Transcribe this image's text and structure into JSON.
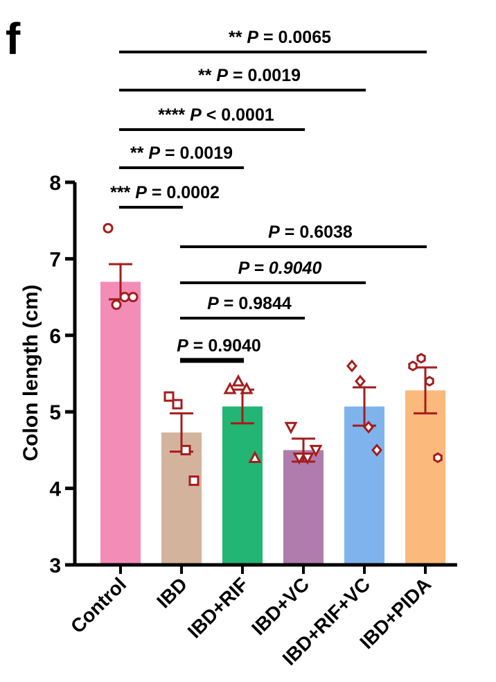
{
  "panel_label": "f",
  "chart_data": {
    "type": "bar",
    "ylabel": "Colon length (cm)",
    "xlabel": "",
    "ylim": [
      3,
      8
    ],
    "yticks": [
      "3",
      "4",
      "5",
      "6",
      "7",
      "8"
    ],
    "categories": [
      "Control",
      "IBD",
      "IBD+RIF",
      "IBD+VC",
      "IBD+RIF+VC",
      "IBD+PIDA"
    ],
    "values": [
      6.7,
      4.73,
      5.07,
      4.5,
      5.07,
      5.28
    ],
    "sem": [
      0.23,
      0.25,
      0.22,
      0.15,
      0.25,
      0.3
    ],
    "bar_colors": [
      "#f48cb8",
      "#d4b39c",
      "#22b573",
      "#b07cad",
      "#7fb3ee",
      "#fbb97b"
    ],
    "point_color": "#a51c1c",
    "points": [
      {
        "marker": "circle",
        "values": [
          7.4,
          6.4,
          6.5,
          6.5
        ]
      },
      {
        "marker": "square",
        "values": [
          5.2,
          5.1,
          4.5,
          4.1
        ]
      },
      {
        "marker": "triangle-up",
        "values": [
          5.3,
          5.4,
          5.3,
          4.4
        ]
      },
      {
        "marker": "triangle-down",
        "values": [
          4.8,
          4.4,
          4.4,
          4.5
        ]
      },
      {
        "marker": "diamond",
        "values": [
          5.6,
          5.4,
          4.8,
          4.5
        ]
      },
      {
        "marker": "hexagon",
        "values": [
          5.6,
          5.7,
          5.4,
          4.4
        ]
      }
    ],
    "comparisons": [
      {
        "from": 0,
        "to": 5,
        "stars": "**",
        "p_label": "P",
        "p_op": "= 0.0065",
        "italic_value": false
      },
      {
        "from": 0,
        "to": 4,
        "stars": "**",
        "p_label": "P",
        "p_op": "= 0.0019",
        "italic_value": false
      },
      {
        "from": 0,
        "to": 3,
        "stars": "****",
        "p_label": "P",
        "p_op": "< 0.0001",
        "italic_value": false
      },
      {
        "from": 0,
        "to": 2,
        "stars": "**",
        "p_label": "P",
        "p_op": "= 0.0019",
        "italic_value": false
      },
      {
        "from": 0,
        "to": 1,
        "stars": "***",
        "p_label": "P",
        "p_op": "= 0.0002",
        "italic_value": false
      },
      {
        "from": 1,
        "to": 5,
        "stars": "",
        "p_label": "P",
        "p_op": "= 0.6038",
        "italic_value": false
      },
      {
        "from": 1,
        "to": 4,
        "stars": "",
        "p_label": "P",
        "p_op": "= 0.9040",
        "italic_value": true
      },
      {
        "from": 1,
        "to": 3,
        "stars": "",
        "p_label": "P",
        "p_op": "= 0.9844",
        "italic_value": false
      },
      {
        "from": 1,
        "to": 2,
        "stars": "",
        "p_label": "P",
        "p_op": "= 0.9040",
        "italic_value": false
      }
    ]
  }
}
